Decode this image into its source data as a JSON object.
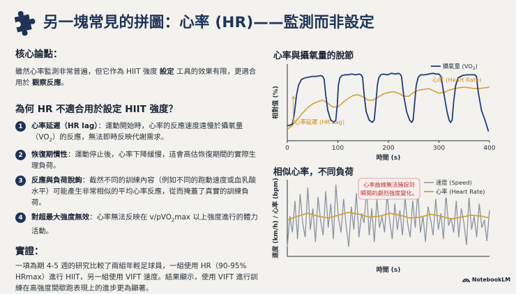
{
  "title": "另一塊常見的拼圖：心率 (HR)——監測而非設定",
  "left": {
    "core_heading": "核心論點：",
    "core_p1": "雖然心率監測非常普遍，但它作為 HIIT 強度",
    "core_b1": "設定",
    "core_p2": "工具的效果有限，更適合用於",
    "core_b2": "觀察反應",
    "core_p3": "。",
    "why_heading": "為何 HR 不適合用於設定 HIIT 強度？",
    "items": [
      {
        "num": "1",
        "bold": "心率延遲（HR lag）",
        "pre": "：運動開始時，心率的反應速度遠慢於攝氧量（VO",
        "sub": "2",
        "post": "）的反應，無法即時反映代謝需求。"
      },
      {
        "num": "2",
        "bold": "恢復期慣性",
        "pre": "：運動停止後，心率下降緩慢，這會高估恢復期間的實際生理負荷。",
        "sub": "",
        "post": ""
      },
      {
        "num": "3",
        "bold": "反應與負荷脫鉤",
        "pre": "：截然不同的訓練內容（例如不同的跑動速度或血乳酸水平）可能產生非常相似的平均心率反應，從而掩蓋了真實的訓練負荷。",
        "sub": "",
        "post": ""
      },
      {
        "num": "4",
        "bold": "對超最大強度無效",
        "pre": "：心率無法反映在 v/pVO",
        "sub": "2",
        "post": "max 以上強度進行的體力活動。"
      }
    ],
    "evidence_heading": "實證：",
    "evidence_text": "一項為期 4-5 週的研究比較了兩組年輕足球員，一組使用 HR（90-95% HRmax）進行 HIIT，另一組使用 VIFT 速度。結果顯示，使用 VIFT 進行訓練在高強度間歇跑表現上的進步更為顯著。"
  },
  "chart_data": [
    {
      "type": "line",
      "title": "心率與攝氧量的脫節",
      "xlabel": "時間 (s)",
      "ylabel": "相對值 (%)",
      "xlim": [
        0,
        400
      ],
      "ylim": [
        0,
        100
      ],
      "xticks": [
        0,
        100,
        200,
        300,
        400
      ],
      "legend_position": "top-right",
      "series": [
        {
          "name": "攝氧量 (VO",
          "name_sub": "2",
          "name_post": ")",
          "color": "#1f3b78",
          "x": [
            0,
            5,
            10,
            14,
            18,
            22,
            28,
            35,
            42,
            50,
            58,
            66,
            70,
            73,
            76,
            80,
            86,
            92,
            96,
            99,
            101,
            104,
            108,
            114,
            120,
            128,
            135,
            142,
            146,
            149,
            152,
            156,
            162,
            168,
            172,
            175,
            178,
            181,
            185,
            190,
            198,
            206,
            214,
            220,
            223,
            226,
            230,
            236,
            242,
            246,
            249,
            252,
            255,
            259,
            264,
            272,
            280,
            288,
            294,
            297,
            300,
            304,
            310,
            316,
            320,
            323,
            326,
            329,
            333,
            338,
            346,
            354,
            362,
            368,
            371,
            374,
            378,
            384,
            392,
            398
          ],
          "y": [
            20,
            20,
            22,
            35,
            58,
            72,
            80,
            82,
            83,
            84,
            84,
            85,
            84,
            80,
            60,
            40,
            27,
            24,
            27,
            48,
            72,
            82,
            85,
            86,
            86,
            87,
            86,
            87,
            86,
            83,
            60,
            38,
            27,
            24,
            27,
            48,
            72,
            82,
            86,
            87,
            86,
            88,
            87,
            88,
            87,
            84,
            60,
            38,
            27,
            24,
            27,
            50,
            72,
            83,
            86,
            86,
            87,
            88,
            87,
            87,
            87,
            84,
            60,
            38,
            27,
            24,
            27,
            50,
            72,
            82,
            85,
            86,
            86,
            86,
            86,
            84,
            62,
            40,
            25,
            12
          ]
        },
        {
          "name": "心率 (Heart Rate)",
          "color": "#d4a13c",
          "x": [
            0,
            10,
            20,
            30,
            40,
            50,
            60,
            70,
            80,
            90,
            100,
            110,
            120,
            130,
            140,
            150,
            160,
            170,
            180,
            190,
            200,
            210,
            220,
            230,
            240,
            250,
            260,
            270,
            280,
            290,
            300,
            310,
            320,
            330,
            340,
            350,
            360,
            370,
            380,
            390,
            400
          ],
          "y": [
            15,
            20,
            28,
            36,
            43,
            48,
            51,
            53,
            49,
            44,
            44,
            50,
            55,
            59,
            60,
            57,
            53,
            53,
            57,
            61,
            63,
            64,
            62,
            58,
            58,
            63,
            66,
            67,
            68,
            65,
            62,
            63,
            66,
            68,
            69,
            70,
            69,
            68,
            68,
            69,
            70
          ]
        }
      ],
      "annotation": "心率延遲 (HR Lag)"
    },
    {
      "type": "line",
      "title": "相似心率，不同負荷",
      "xlabel": "時間 (s)",
      "ylabel": "速度 (km/h) / 心率 (bpm)",
      "legend_position": "top-right",
      "series": [
        {
          "name": "速度 (Speed)",
          "color": "#8a93a0",
          "x": [
            0,
            1,
            2,
            3,
            4,
            5,
            6,
            7,
            8,
            9,
            10,
            11,
            12,
            13,
            14,
            15,
            16,
            17,
            18,
            19,
            20,
            21,
            22,
            23,
            24,
            25,
            26,
            27,
            28,
            29,
            30,
            31,
            32,
            33,
            34,
            35,
            36,
            37,
            38,
            39,
            40,
            41,
            42,
            43,
            44,
            45,
            46,
            47,
            48,
            49,
            50,
            51,
            52,
            53,
            54,
            55,
            56,
            57,
            58,
            59,
            60,
            61,
            62,
            63,
            64,
            65,
            66,
            67,
            68,
            69,
            70,
            71,
            72,
            73,
            74,
            75,
            76,
            77,
            78,
            79
          ],
          "y": [
            30,
            62,
            45,
            78,
            38,
            85,
            55,
            40,
            92,
            48,
            70,
            35,
            82,
            58,
            42,
            88,
            50,
            75,
            38,
            95,
            60,
            45,
            80,
            52,
            30,
            72,
            48,
            86,
            40,
            65,
            55,
            90,
            42,
            70,
            35,
            80,
            50,
            62,
            45,
            85,
            58,
            38,
            75,
            48,
            68,
            42,
            82,
            55,
            40,
            78,
            50,
            88,
            45,
            62,
            35,
            72,
            58,
            42,
            80,
            48,
            65,
            38,
            85,
            52,
            60,
            45,
            78,
            40,
            70,
            55,
            32,
            82,
            48,
            62,
            40,
            75,
            50,
            58,
            36,
            68
          ]
        },
        {
          "name": "心率 (Heart Rate)",
          "color": "#d4a13c",
          "x": [
            0,
            4,
            8,
            12,
            16,
            20,
            24,
            28,
            32,
            36,
            40,
            44,
            48,
            52,
            56,
            60,
            64,
            68,
            72,
            76,
            79
          ],
          "y": [
            58,
            62,
            65,
            62,
            60,
            63,
            66,
            64,
            61,
            62,
            65,
            63,
            60,
            61,
            64,
            62,
            59,
            61,
            63,
            62,
            60
          ]
        }
      ],
      "callout": [
        "心率曲線無法捕捉到",
        "瞬間的劇烈強度變化。"
      ]
    }
  ],
  "brand": "NotebookLM",
  "colors": {
    "navy": "#1f3358",
    "vo2": "#1f3b78",
    "hr": "#d4a13c",
    "speed": "#8a93a0",
    "callout": "#b8383a"
  }
}
